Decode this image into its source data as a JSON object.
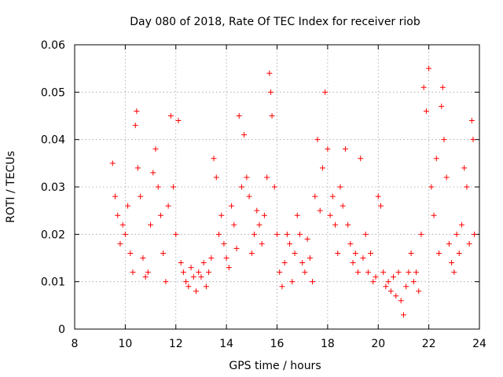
{
  "chart_data": {
    "type": "scatter",
    "title": "Day 080 of 2018, Rate Of TEC Index for receiver riob",
    "xlabel": "GPS time / hours",
    "ylabel": "ROTI / TECUs",
    "xlim": [
      8,
      24
    ],
    "ylim": [
      0,
      0.06
    ],
    "x_ticks": [
      8,
      10,
      12,
      14,
      16,
      18,
      20,
      22,
      24
    ],
    "x_tick_labels": [
      "8",
      "10",
      "12",
      "14",
      "16",
      "18",
      "20",
      "22",
      "24"
    ],
    "y_ticks": [
      0,
      0.01,
      0.02,
      0.03,
      0.04,
      0.05,
      0.06
    ],
    "y_tick_labels": [
      "0",
      "0.01",
      "0.02",
      "0.03",
      "0.04",
      "0.05",
      "0.06"
    ],
    "grid": true,
    "marker": "+",
    "color": "#ff0000",
    "series": [
      {
        "name": "ROTI",
        "points": [
          [
            9.5,
            0.035
          ],
          [
            9.6,
            0.028
          ],
          [
            9.7,
            0.024
          ],
          [
            9.8,
            0.018
          ],
          [
            9.9,
            0.022
          ],
          [
            10.0,
            0.02
          ],
          [
            10.1,
            0.026
          ],
          [
            10.2,
            0.016
          ],
          [
            10.3,
            0.012
          ],
          [
            10.4,
            0.043
          ],
          [
            10.45,
            0.046
          ],
          [
            10.5,
            0.034
          ],
          [
            10.6,
            0.028
          ],
          [
            10.7,
            0.015
          ],
          [
            10.8,
            0.011
          ],
          [
            10.9,
            0.012
          ],
          [
            11.0,
            0.022
          ],
          [
            11.1,
            0.033
          ],
          [
            11.2,
            0.038
          ],
          [
            11.3,
            0.03
          ],
          [
            11.4,
            0.024
          ],
          [
            11.5,
            0.016
          ],
          [
            11.6,
            0.01
          ],
          [
            11.7,
            0.026
          ],
          [
            11.8,
            0.045
          ],
          [
            11.9,
            0.03
          ],
          [
            12.0,
            0.02
          ],
          [
            12.1,
            0.044
          ],
          [
            12.2,
            0.014
          ],
          [
            12.3,
            0.012
          ],
          [
            12.4,
            0.01
          ],
          [
            12.5,
            0.009
          ],
          [
            12.6,
            0.013
          ],
          [
            12.7,
            0.011
          ],
          [
            12.8,
            0.008
          ],
          [
            12.9,
            0.012
          ],
          [
            13.0,
            0.011
          ],
          [
            13.1,
            0.014
          ],
          [
            13.2,
            0.009
          ],
          [
            13.3,
            0.012
          ],
          [
            13.4,
            0.015
          ],
          [
            13.5,
            0.036
          ],
          [
            13.6,
            0.032
          ],
          [
            13.7,
            0.02
          ],
          [
            13.8,
            0.024
          ],
          [
            13.9,
            0.018
          ],
          [
            14.0,
            0.015
          ],
          [
            14.1,
            0.013
          ],
          [
            14.2,
            0.026
          ],
          [
            14.3,
            0.022
          ],
          [
            14.4,
            0.017
          ],
          [
            14.5,
            0.045
          ],
          [
            14.6,
            0.03
          ],
          [
            14.7,
            0.041
          ],
          [
            14.8,
            0.032
          ],
          [
            14.9,
            0.028
          ],
          [
            15.0,
            0.016
          ],
          [
            15.1,
            0.02
          ],
          [
            15.2,
            0.025
          ],
          [
            15.3,
            0.022
          ],
          [
            15.4,
            0.018
          ],
          [
            15.5,
            0.024
          ],
          [
            15.6,
            0.032
          ],
          [
            15.7,
            0.054
          ],
          [
            15.75,
            0.05
          ],
          [
            15.8,
            0.045
          ],
          [
            15.9,
            0.03
          ],
          [
            16.0,
            0.02
          ],
          [
            16.1,
            0.012
          ],
          [
            16.2,
            0.009
          ],
          [
            16.3,
            0.014
          ],
          [
            16.4,
            0.02
          ],
          [
            16.5,
            0.018
          ],
          [
            16.6,
            0.01
          ],
          [
            16.7,
            0.016
          ],
          [
            16.8,
            0.024
          ],
          [
            16.9,
            0.02
          ],
          [
            17.0,
            0.014
          ],
          [
            17.1,
            0.012
          ],
          [
            17.2,
            0.019
          ],
          [
            17.3,
            0.015
          ],
          [
            17.4,
            0.01
          ],
          [
            17.5,
            0.028
          ],
          [
            17.6,
            0.04
          ],
          [
            17.7,
            0.025
          ],
          [
            17.8,
            0.034
          ],
          [
            17.9,
            0.05
          ],
          [
            18.0,
            0.038
          ],
          [
            18.1,
            0.024
          ],
          [
            18.2,
            0.028
          ],
          [
            18.3,
            0.022
          ],
          [
            18.4,
            0.016
          ],
          [
            18.5,
            0.03
          ],
          [
            18.6,
            0.026
          ],
          [
            18.7,
            0.038
          ],
          [
            18.8,
            0.022
          ],
          [
            18.9,
            0.018
          ],
          [
            19.0,
            0.014
          ],
          [
            19.1,
            0.016
          ],
          [
            19.2,
            0.012
          ],
          [
            19.3,
            0.036
          ],
          [
            19.4,
            0.015
          ],
          [
            19.5,
            0.02
          ],
          [
            19.6,
            0.012
          ],
          [
            19.7,
            0.016
          ],
          [
            19.8,
            0.01
          ],
          [
            19.9,
            0.011
          ],
          [
            20.0,
            0.028
          ],
          [
            20.1,
            0.026
          ],
          [
            20.2,
            0.012
          ],
          [
            20.3,
            0.009
          ],
          [
            20.4,
            0.01
          ],
          [
            20.5,
            0.008
          ],
          [
            20.6,
            0.011
          ],
          [
            20.7,
            0.007
          ],
          [
            20.8,
            0.012
          ],
          [
            20.9,
            0.006
          ],
          [
            21.0,
            0.003
          ],
          [
            21.1,
            0.009
          ],
          [
            21.2,
            0.012
          ],
          [
            21.3,
            0.016
          ],
          [
            21.4,
            0.01
          ],
          [
            21.5,
            0.012
          ],
          [
            21.6,
            0.008
          ],
          [
            21.7,
            0.02
          ],
          [
            21.8,
            0.051
          ],
          [
            21.9,
            0.046
          ],
          [
            22.0,
            0.055
          ],
          [
            22.1,
            0.03
          ],
          [
            22.2,
            0.024
          ],
          [
            22.3,
            0.036
          ],
          [
            22.4,
            0.016
          ],
          [
            22.5,
            0.047
          ],
          [
            22.55,
            0.051
          ],
          [
            22.6,
            0.04
          ],
          [
            22.7,
            0.032
          ],
          [
            22.8,
            0.018
          ],
          [
            22.9,
            0.014
          ],
          [
            23.0,
            0.012
          ],
          [
            23.1,
            0.02
          ],
          [
            23.2,
            0.016
          ],
          [
            23.3,
            0.022
          ],
          [
            23.4,
            0.034
          ],
          [
            23.5,
            0.03
          ],
          [
            23.6,
            0.018
          ],
          [
            23.7,
            0.044
          ],
          [
            23.75,
            0.04
          ],
          [
            23.8,
            0.02
          ]
        ]
      }
    ]
  }
}
